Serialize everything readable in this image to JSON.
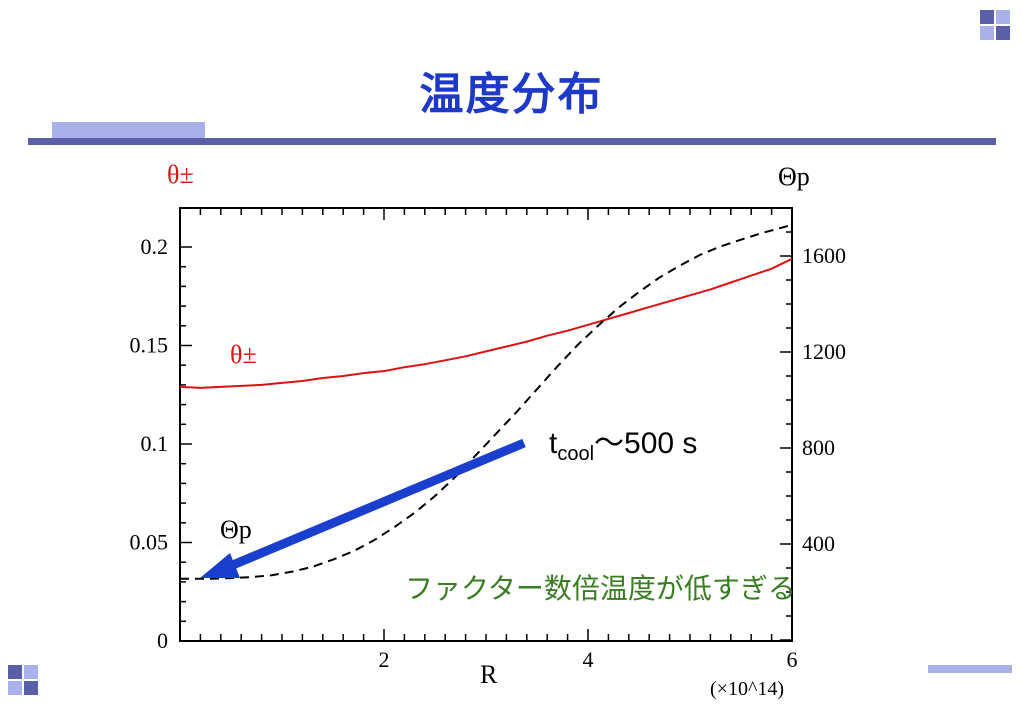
{
  "slide": {
    "title": "温度分布",
    "theme_colors": {
      "title": "#1e38c8",
      "accent_bar": "#5a5fa8",
      "accent_light": "#aab0e8"
    }
  },
  "chart_data": {
    "type": "line",
    "xlabel": "R",
    "x_multiplier": "(×10^14)",
    "xlim": [
      0,
      6
    ],
    "x_ticks": [
      2,
      4,
      6
    ],
    "left_axis": {
      "label": "θ±",
      "ylim": [
        0,
        0.2
      ],
      "ticks": [
        0,
        0.05,
        0.1,
        0.15,
        0.2
      ],
      "color": "#dd1111"
    },
    "right_axis": {
      "label": "Θp",
      "ticks": [
        400,
        800,
        1200,
        1600
      ],
      "color": "#000000"
    },
    "series": [
      {
        "name": "θ±",
        "axis": "left",
        "color": "#dd1111",
        "dash": "solid",
        "x": [
          0.0,
          0.2,
          0.4,
          0.6,
          0.8,
          1.0,
          1.2,
          1.4,
          1.6,
          1.8,
          2.0,
          2.2,
          2.4,
          2.6,
          2.8,
          3.0,
          3.2,
          3.4,
          3.6,
          3.8,
          4.0,
          4.2,
          4.4,
          4.6,
          4.8,
          5.0,
          5.2,
          5.4,
          5.6,
          5.8,
          6.0
        ],
        "y": [
          0.129,
          0.1285,
          0.129,
          0.1295,
          0.13,
          0.131,
          0.132,
          0.1335,
          0.1345,
          0.136,
          0.137,
          0.139,
          0.1405,
          0.1425,
          0.1445,
          0.147,
          0.1495,
          0.152,
          0.155,
          0.1575,
          0.1605,
          0.1635,
          0.1665,
          0.1695,
          0.1725,
          0.1755,
          0.1785,
          0.182,
          0.1855,
          0.189,
          0.194
        ]
      },
      {
        "name": "Θp",
        "axis": "right",
        "color": "#000000",
        "dash": "dashed",
        "x": [
          0.0,
          0.3,
          0.5,
          0.7,
          0.9,
          1.1,
          1.3,
          1.5,
          1.7,
          1.9,
          2.1,
          2.3,
          2.5,
          2.7,
          2.9,
          3.1,
          3.3,
          3.5,
          3.7,
          3.9,
          4.1,
          4.3,
          4.5,
          4.7,
          4.9,
          5.1,
          5.3,
          5.5,
          5.7,
          5.9,
          6.0
        ],
        "y": [
          255,
          255,
          258,
          262,
          270,
          285,
          305,
          335,
          370,
          415,
          470,
          530,
          600,
          680,
          770,
          860,
          950,
          1045,
          1140,
          1230,
          1310,
          1385,
          1450,
          1510,
          1560,
          1605,
          1640,
          1668,
          1695,
          1718,
          1730
        ]
      }
    ],
    "annotations": [
      {
        "kind": "label",
        "text": "θ±",
        "color": "#dd1111"
      },
      {
        "kind": "label",
        "text": "Θp",
        "color": "#000000"
      },
      {
        "kind": "label",
        "text": "tcool〜500 s",
        "main": "t",
        "sub": "cool",
        "rest": "〜500 s",
        "color": "#000000"
      },
      {
        "kind": "arrow",
        "color": "#1a3fcf"
      },
      {
        "kind": "label",
        "text": "ファクター数倍温度が低すぎる",
        "color": "#3a7d22"
      }
    ]
  }
}
